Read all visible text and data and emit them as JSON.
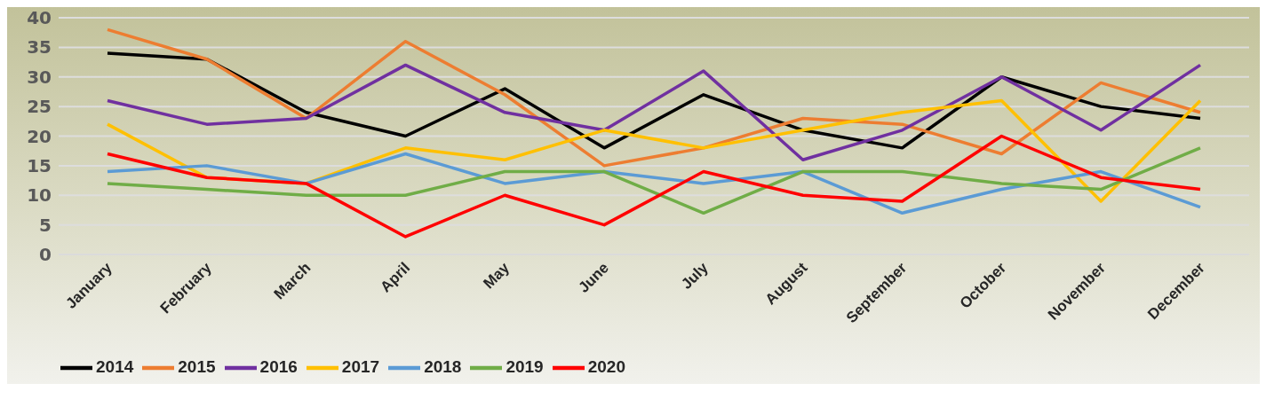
{
  "chart_data": {
    "type": "line",
    "categories": [
      "January",
      "February",
      "March",
      "April",
      "May",
      "June",
      "July",
      "August",
      "September",
      "October",
      "November",
      "December"
    ],
    "series": [
      {
        "name": "2014",
        "color": "#000000",
        "values": [
          34,
          33,
          24,
          20,
          28,
          18,
          27,
          21,
          18,
          30,
          25,
          23
        ]
      },
      {
        "name": "2015",
        "color": "#ed7d31",
        "values": [
          38,
          33,
          23,
          36,
          27,
          15,
          18,
          23,
          22,
          17,
          29,
          24
        ]
      },
      {
        "name": "2016",
        "color": "#7030a0",
        "values": [
          26,
          22,
          23,
          32,
          24,
          21,
          31,
          16,
          21,
          30,
          21,
          32
        ]
      },
      {
        "name": "2017",
        "color": "#ffc000",
        "values": [
          22,
          13,
          12,
          18,
          16,
          21,
          18,
          21,
          24,
          26,
          9,
          26
        ]
      },
      {
        "name": "2018",
        "color": "#5b9bd5",
        "values": [
          14,
          15,
          12,
          17,
          12,
          14,
          12,
          14,
          7,
          11,
          14,
          8
        ]
      },
      {
        "name": "2019",
        "color": "#70ad47",
        "values": [
          12,
          11,
          10,
          10,
          14,
          14,
          7,
          14,
          14,
          12,
          11,
          18
        ]
      },
      {
        "name": "2020",
        "color": "#ff0000",
        "values": [
          17,
          13,
          12,
          3,
          10,
          5,
          14,
          10,
          9,
          20,
          13,
          11
        ]
      }
    ],
    "ylim": [
      0,
      40
    ],
    "yticks": [
      0,
      5,
      10,
      15,
      20,
      25,
      30,
      35,
      40
    ],
    "grid": "y",
    "legend": "bottom left",
    "marker": "none",
    "line_style": "solid"
  }
}
